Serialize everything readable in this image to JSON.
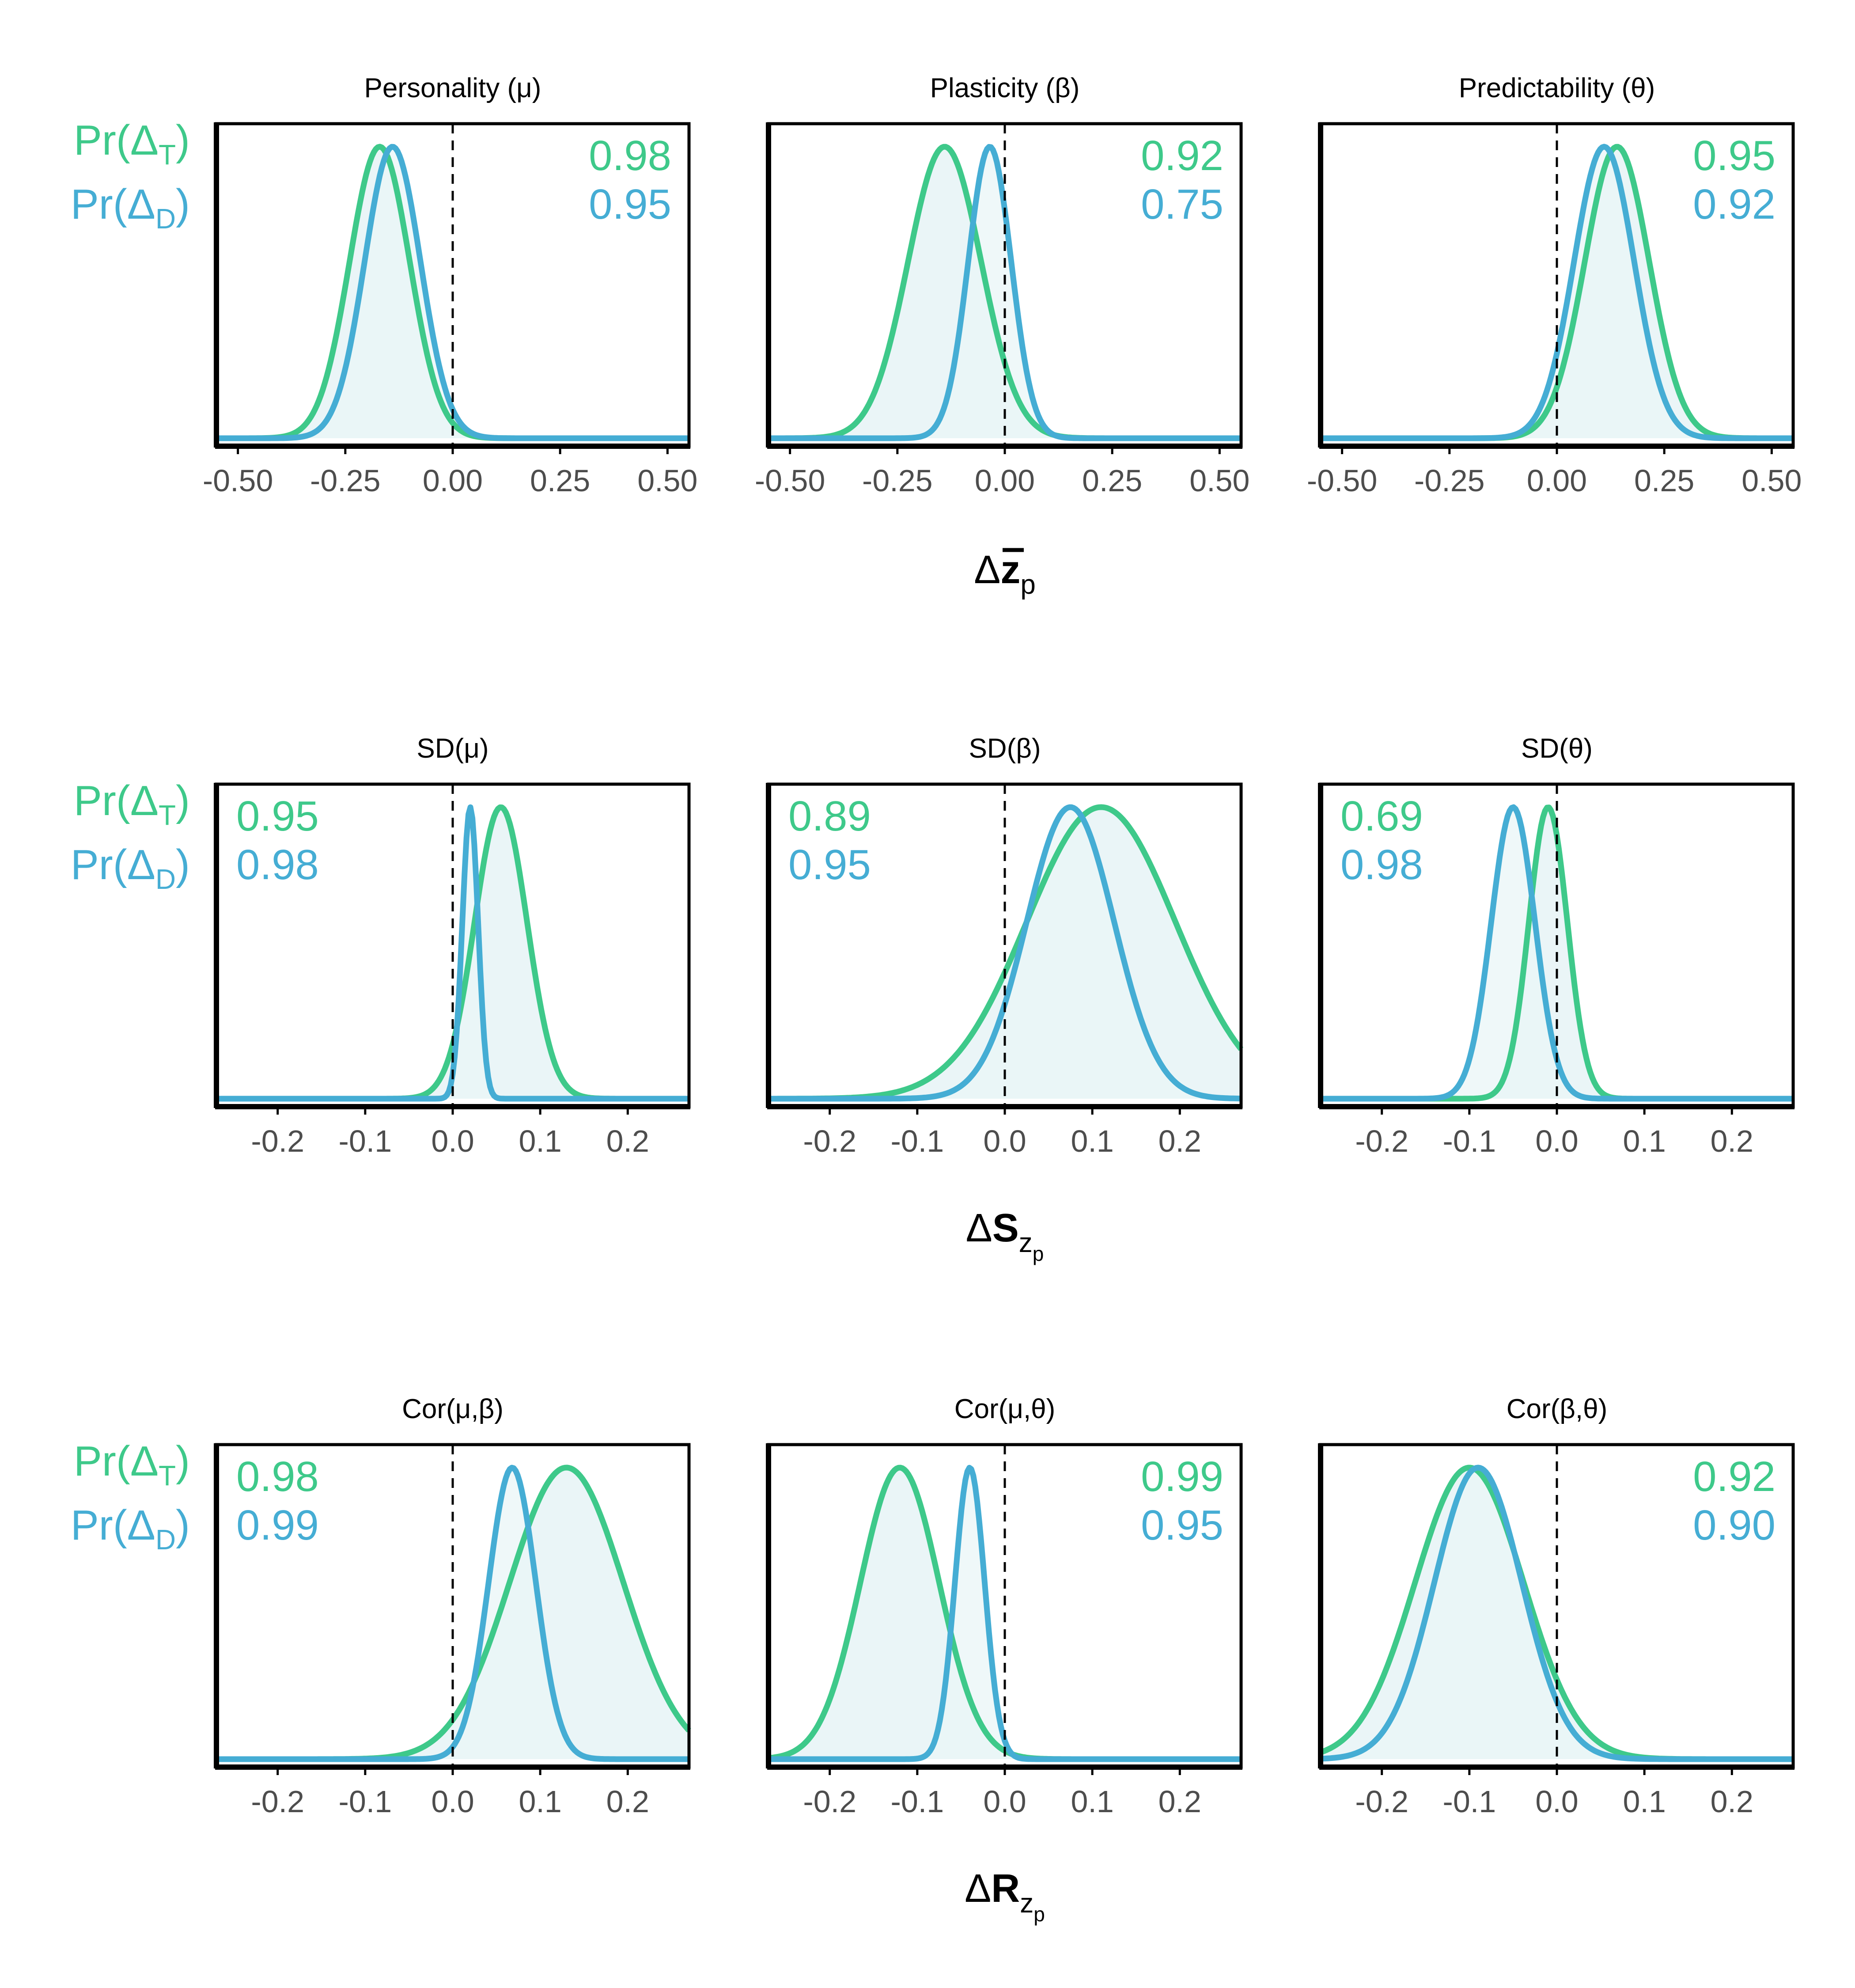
{
  "colors": {
    "teal": "#3EC98A",
    "blue": "#45ADD4",
    "fill": "#EAF5F7",
    "axis": "#000000",
    "tick_text": "#4d4d4d"
  },
  "row_labels": {
    "pr_prefix": "Pr(",
    "delta": "Δ",
    "t_sub": "T",
    "d_sub": "D",
    "close": ")"
  },
  "row_xlabels": [
    {
      "delta": "Δ",
      "symbol": "z",
      "sub": "p"
    },
    {
      "delta": "Δ",
      "symbol": "S",
      "sub": "z",
      "subsub": "p"
    },
    {
      "delta": "Δ",
      "symbol": "R",
      "sub": "z",
      "subsub": "p"
    }
  ],
  "chart_data": [
    {
      "type": "area",
      "row": 0,
      "col": 0,
      "title": "Personality (μ)",
      "xlim": [
        -0.55,
        0.55
      ],
      "xticks": [
        -0.5,
        -0.25,
        0,
        0.25,
        0.5
      ],
      "xtick_labels": [
        "-0.50",
        "-0.25",
        "0.00",
        "0.25",
        "0.50"
      ],
      "prob_position": "top-right",
      "show_row_label": true,
      "series": [
        {
          "name": "Pr(ΔT)",
          "prob": "0.98",
          "mean": -0.17,
          "sd": 0.07
        },
        {
          "name": "Pr(ΔD)",
          "prob": "0.95",
          "mean": -0.14,
          "sd": 0.065
        }
      ]
    },
    {
      "type": "area",
      "row": 0,
      "col": 1,
      "title": "Plasticity (β)",
      "xlim": [
        -0.55,
        0.55
      ],
      "xticks": [
        -0.5,
        -0.25,
        0,
        0.25,
        0.5
      ],
      "xtick_labels": [
        "-0.50",
        "-0.25",
        "0.00",
        "0.25",
        "0.50"
      ],
      "prob_position": "top-right",
      "show_row_label": false,
      "series": [
        {
          "name": "Pr(ΔT)",
          "prob": "0.92",
          "mean": -0.14,
          "sd": 0.085
        },
        {
          "name": "Pr(ΔD)",
          "prob": "0.75",
          "mean": -0.035,
          "sd": 0.05
        }
      ]
    },
    {
      "type": "area",
      "row": 0,
      "col": 2,
      "title": "Predictability (θ)",
      "xlim": [
        -0.55,
        0.55
      ],
      "xticks": [
        -0.5,
        -0.25,
        0,
        0.25,
        0.5
      ],
      "xtick_labels": [
        "-0.50",
        "-0.25",
        "0.00",
        "0.25",
        "0.50"
      ],
      "prob_position": "top-right",
      "show_row_label": false,
      "series": [
        {
          "name": "Pr(ΔT)",
          "prob": "0.95",
          "mean": 0.14,
          "sd": 0.075
        },
        {
          "name": "Pr(ΔD)",
          "prob": "0.92",
          "mean": 0.11,
          "sd": 0.07
        }
      ]
    },
    {
      "type": "area",
      "row": 1,
      "col": 0,
      "title": "SD(μ)",
      "xlim": [
        -0.27,
        0.27
      ],
      "xticks": [
        -0.2,
        -0.1,
        0,
        0.1,
        0.2
      ],
      "xtick_labels": [
        "-0.2",
        "-0.1",
        "0.0",
        "0.1",
        "0.2"
      ],
      "prob_position": "top-left",
      "show_row_label": true,
      "series": [
        {
          "name": "Pr(ΔT)",
          "prob": "0.95",
          "mean": 0.055,
          "sd": 0.03
        },
        {
          "name": "Pr(ΔD)",
          "prob": "0.98",
          "mean": 0.02,
          "sd": 0.009
        }
      ]
    },
    {
      "type": "area",
      "row": 1,
      "col": 1,
      "title": "SD(β)",
      "xlim": [
        -0.27,
        0.27
      ],
      "xticks": [
        -0.2,
        -0.1,
        0,
        0.1,
        0.2
      ],
      "xtick_labels": [
        "-0.2",
        "-0.1",
        "0.0",
        "0.1",
        "0.2"
      ],
      "prob_position": "top-left",
      "show_row_label": false,
      "series": [
        {
          "name": "Pr(ΔT)",
          "prob": "0.89",
          "mean": 0.11,
          "sd": 0.085
        },
        {
          "name": "Pr(ΔD)",
          "prob": "0.95",
          "mean": 0.075,
          "sd": 0.05
        }
      ]
    },
    {
      "type": "area",
      "row": 1,
      "col": 2,
      "title": "SD(θ)",
      "xlim": [
        -0.27,
        0.27
      ],
      "xticks": [
        -0.2,
        -0.1,
        0,
        0.1,
        0.2
      ],
      "xtick_labels": [
        "-0.2",
        "-0.1",
        "0.0",
        "0.1",
        "0.2"
      ],
      "prob_position": "top-left",
      "show_row_label": true,
      "series": [
        {
          "name": "Pr(ΔT)",
          "prob": "0.69",
          "mean": -0.01,
          "sd": 0.022
        },
        {
          "name": "Pr(ΔD)",
          "prob": "0.98",
          "mean": -0.05,
          "sd": 0.025
        }
      ]
    },
    {
      "type": "area",
      "row": 2,
      "col": 0,
      "title": "Cor(μ,β)",
      "xlim": [
        -0.27,
        0.27
      ],
      "xticks": [
        -0.2,
        -0.1,
        0,
        0.1,
        0.2
      ],
      "xtick_labels": [
        "-0.2",
        "-0.1",
        "0.0",
        "0.1",
        "0.2"
      ],
      "prob_position": "top-left",
      "show_row_label": true,
      "series": [
        {
          "name": "Pr(ΔT)",
          "prob": "0.98",
          "mean": 0.13,
          "sd": 0.065
        },
        {
          "name": "Pr(ΔD)",
          "prob": "0.99",
          "mean": 0.068,
          "sd": 0.027
        }
      ]
    },
    {
      "type": "area",
      "row": 2,
      "col": 1,
      "title": "Cor(μ,θ)",
      "xlim": [
        -0.27,
        0.27
      ],
      "xticks": [
        -0.2,
        -0.1,
        0,
        0.1,
        0.2
      ],
      "xtick_labels": [
        "-0.2",
        "-0.1",
        "0.0",
        "0.1",
        "0.2"
      ],
      "prob_position": "top-right",
      "show_row_label": false,
      "series": [
        {
          "name": "Pr(ΔT)",
          "prob": "0.99",
          "mean": -0.12,
          "sd": 0.045
        },
        {
          "name": "Pr(ΔD)",
          "prob": "0.95",
          "mean": -0.04,
          "sd": 0.017
        }
      ]
    },
    {
      "type": "area",
      "row": 2,
      "col": 2,
      "title": "Cor(β,θ)",
      "xlim": [
        -0.27,
        0.27
      ],
      "xticks": [
        -0.2,
        -0.1,
        0,
        0.1,
        0.2
      ],
      "xtick_labels": [
        "-0.2",
        "-0.1",
        "0.0",
        "0.1",
        "0.2"
      ],
      "prob_position": "top-right",
      "show_row_label": false,
      "series": [
        {
          "name": "Pr(ΔT)",
          "prob": "0.92",
          "mean": -0.1,
          "sd": 0.062
        },
        {
          "name": "Pr(ΔD)",
          "prob": "0.90",
          "mean": -0.09,
          "sd": 0.05
        }
      ]
    }
  ]
}
